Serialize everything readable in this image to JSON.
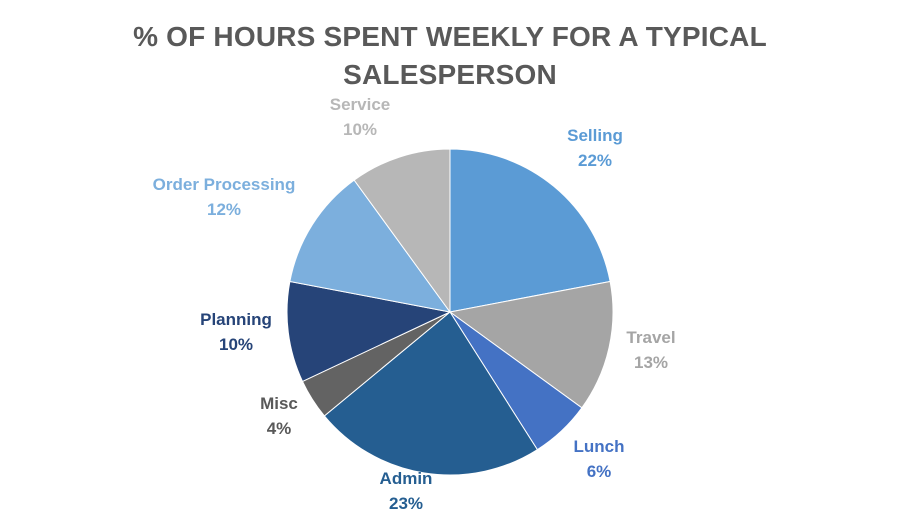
{
  "chart_data": {
    "type": "pie",
    "title": "% OF HOURS SPENT WEEKLY FOR A TYPICAL SALESPERSON",
    "categories": [
      "Selling",
      "Travel",
      "Lunch",
      "Admin",
      "Misc",
      "Planning",
      "Order Processing",
      "Service"
    ],
    "values": [
      22,
      13,
      6,
      23,
      4,
      10,
      12,
      10
    ],
    "value_labels": [
      "22%",
      "13%",
      "6%",
      "23%",
      "4%",
      "10%",
      "12%",
      "10%"
    ],
    "colors": [
      "#5B9BD5",
      "#A5A5A5",
      "#4472C4",
      "#255E91",
      "#636363",
      "#264478",
      "#7CAFDD",
      "#B7B7B7"
    ],
    "label_colors": [
      "#5B9BD5",
      "#A5A5A5",
      "#4472C4",
      "#255E91",
      "#595959",
      "#264478",
      "#7CAFDD",
      "#B7B7B7"
    ],
    "start_angle_deg": 0,
    "direction": "clockwise",
    "legend": "none"
  }
}
